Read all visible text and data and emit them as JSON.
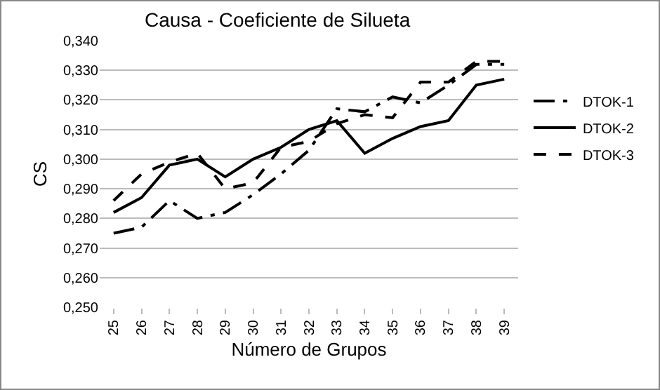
{
  "chart_data": {
    "type": "line",
    "title": "Causa - Coeficiente de Silueta",
    "xlabel": "Número de Grupos",
    "ylabel": "CS",
    "categories": [
      "25",
      "26",
      "27",
      "28",
      "29",
      "30",
      "31",
      "32",
      "33",
      "34",
      "35",
      "36",
      "37",
      "38",
      "39"
    ],
    "series": [
      {
        "name": "DTOK-1",
        "color": "#000000",
        "line_style": "dashdot",
        "values": [
          0.275,
          0.277,
          0.286,
          0.28,
          0.282,
          0.288,
          0.295,
          0.303,
          0.317,
          0.316,
          0.321,
          0.319,
          0.325,
          0.332,
          0.332
        ]
      },
      {
        "name": "DTOK-2",
        "color": "#000000",
        "line_style": "solid",
        "values": [
          0.282,
          0.287,
          0.298,
          0.3,
          0.294,
          0.3,
          0.304,
          0.31,
          0.313,
          0.302,
          0.307,
          0.311,
          0.313,
          0.325,
          0.327
        ]
      },
      {
        "name": "DTOK-3",
        "color": "#000000",
        "line_style": "dashed",
        "values": [
          0.286,
          0.295,
          0.299,
          0.302,
          0.29,
          0.292,
          0.304,
          0.306,
          0.312,
          0.315,
          0.314,
          0.326,
          0.326,
          0.333,
          0.333
        ]
      }
    ],
    "ylim": [
      0.25,
      0.34
    ],
    "yticks": [
      {
        "value": 0.25,
        "label": "0,250"
      },
      {
        "value": 0.26,
        "label": "0,260"
      },
      {
        "value": 0.27,
        "label": "0,270"
      },
      {
        "value": 0.28,
        "label": "0,280"
      },
      {
        "value": 0.29,
        "label": "0,290"
      },
      {
        "value": 0.3,
        "label": "0,300"
      },
      {
        "value": 0.31,
        "label": "0,310"
      },
      {
        "value": 0.32,
        "label": "0,320"
      },
      {
        "value": 0.33,
        "label": "0,330"
      },
      {
        "value": 0.34,
        "label": "0,340"
      }
    ],
    "grid": "y",
    "legend": "right",
    "marker": "none"
  }
}
